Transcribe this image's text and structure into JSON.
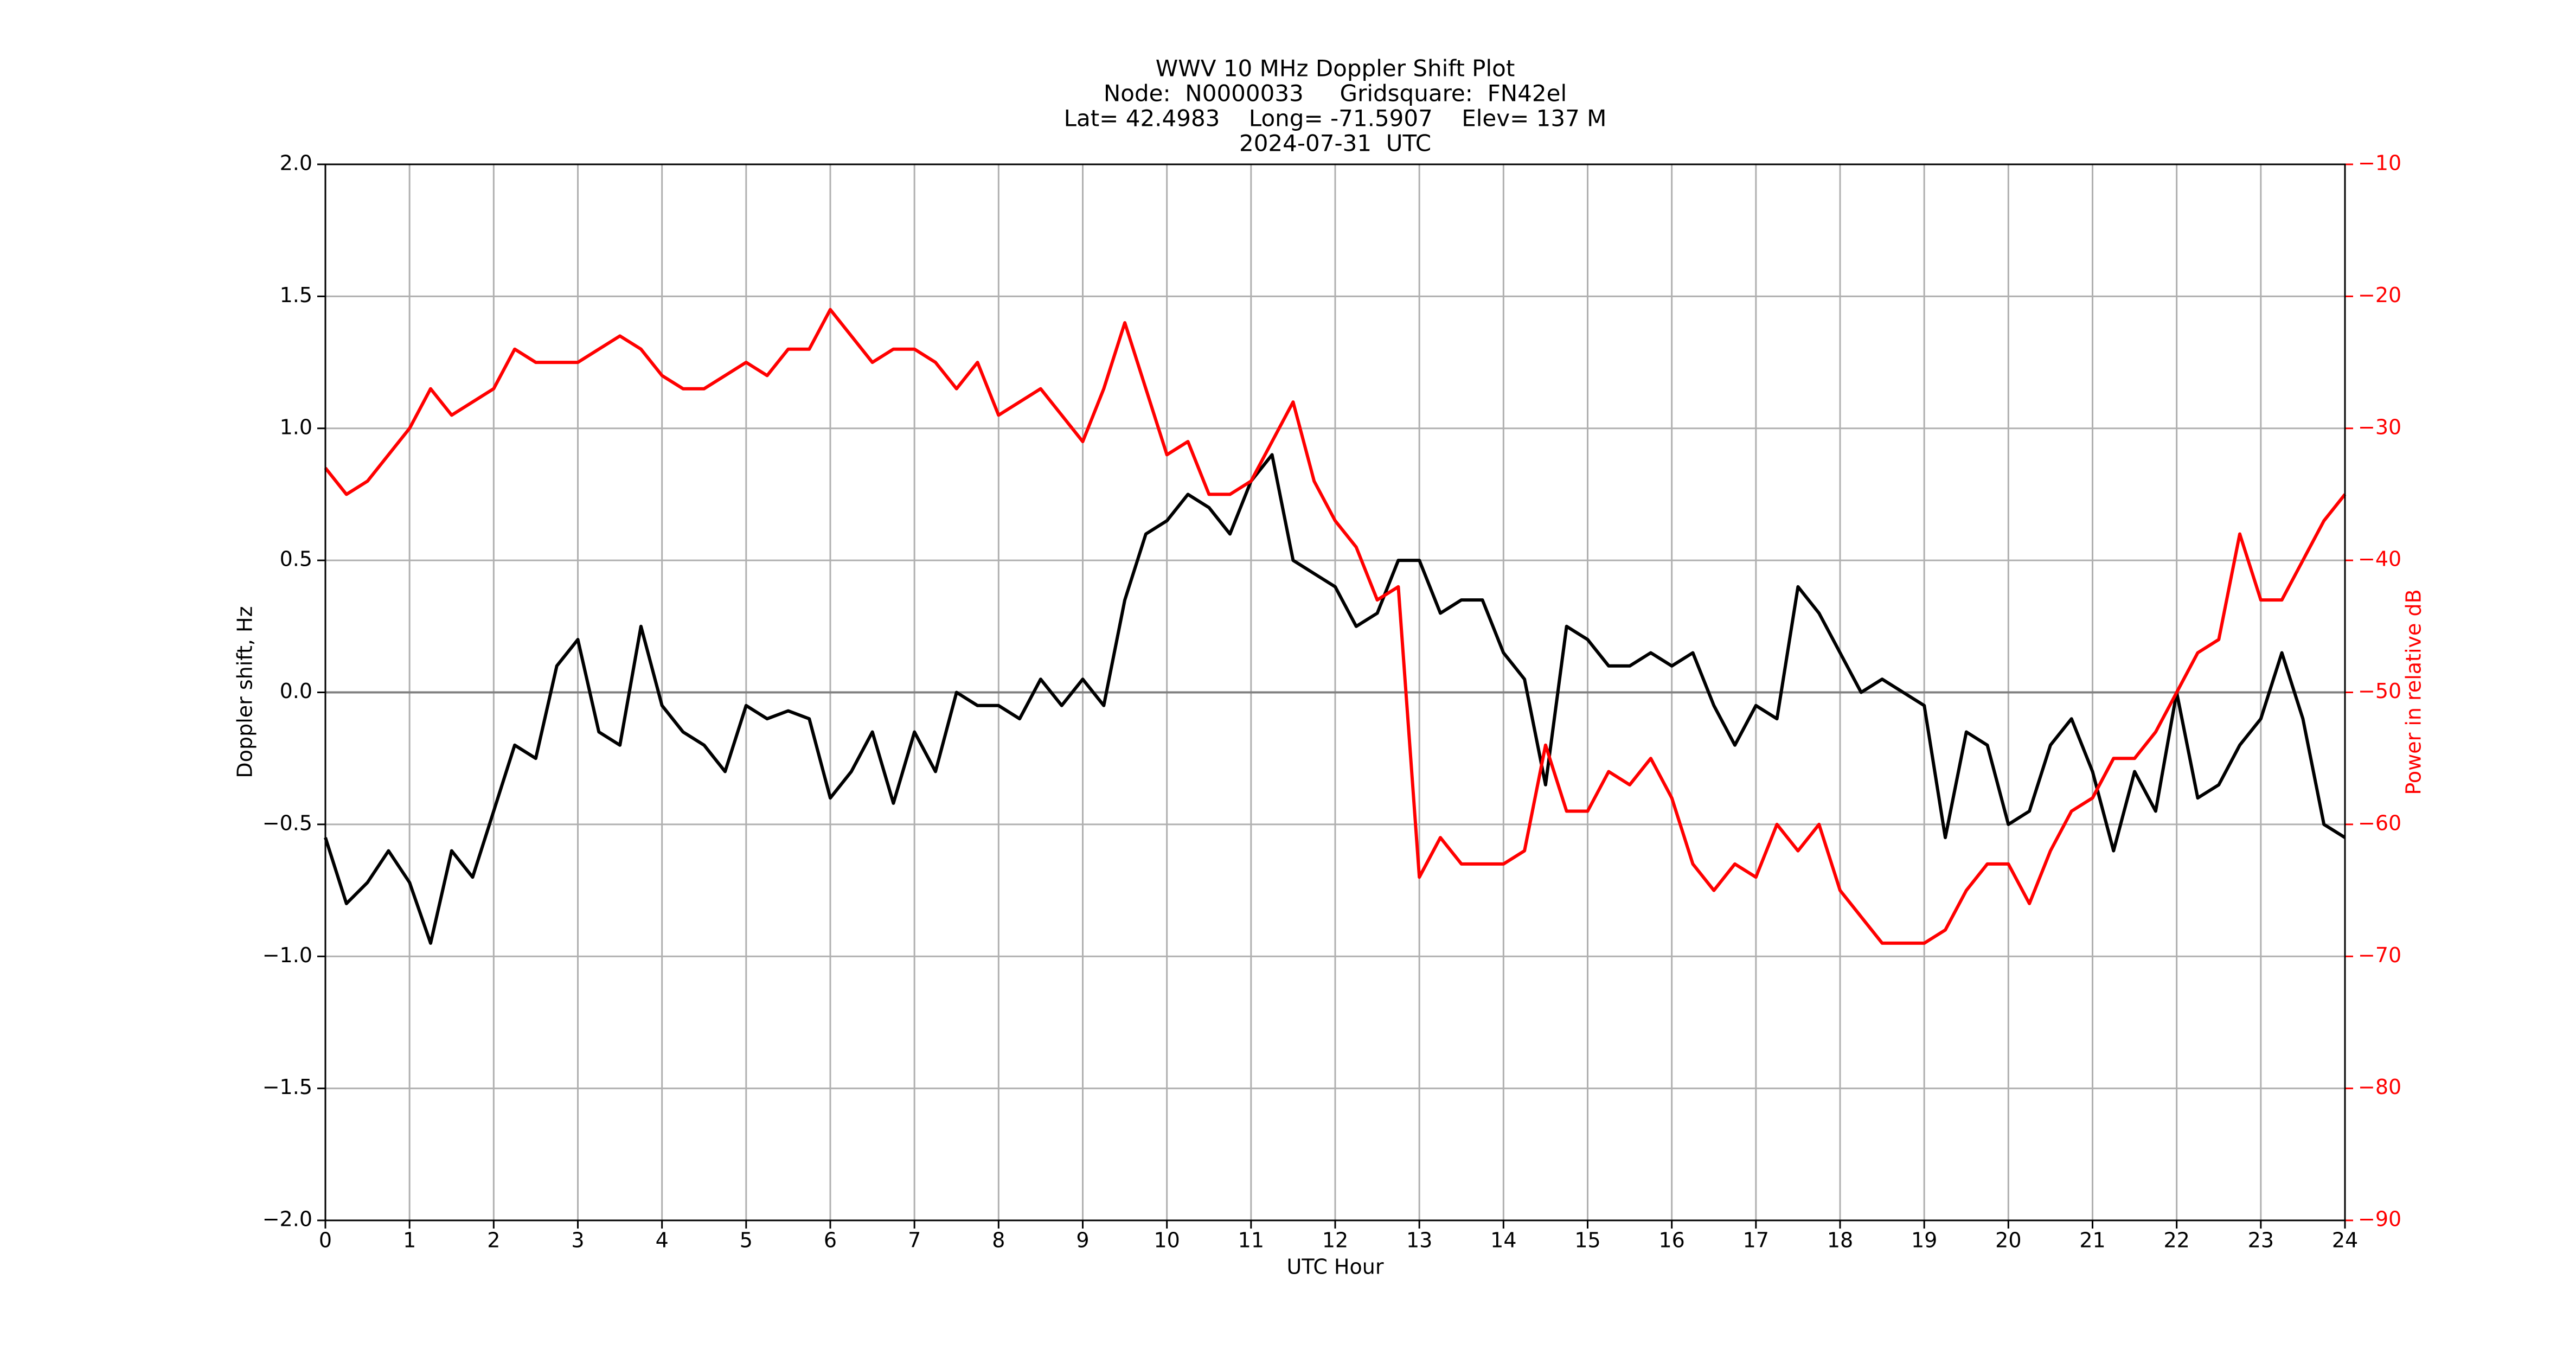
{
  "chart_data": {
    "type": "line",
    "title": [
      "WWV 10 MHz Doppler Shift Plot",
      "Node:  N0000033     Gridsquare:  FN42el",
      "Lat= 42.4983    Long= -71.5907    Elev= 137 M",
      "2024-07-31  UTC"
    ],
    "xlabel": "UTC Hour",
    "ylabel": "Doppler shift, Hz",
    "y2label": "Power in relative dB",
    "y2color": "#ff0000",
    "grid": true,
    "axhline": 0,
    "xlim": [
      0,
      24
    ],
    "xticks": [
      0,
      1,
      2,
      3,
      4,
      5,
      6,
      7,
      8,
      9,
      10,
      11,
      12,
      13,
      14,
      15,
      16,
      17,
      18,
      19,
      20,
      21,
      22,
      23,
      24
    ],
    "ylim": [
      -2,
      2
    ],
    "yticks": [
      {
        "value": -2,
        "label": "−2.0"
      },
      {
        "value": -1.5,
        "label": "−1.5"
      },
      {
        "value": -1,
        "label": "−1.0"
      },
      {
        "value": -0.5,
        "label": "−0.5"
      },
      {
        "value": 0,
        "label": "0.0"
      },
      {
        "value": 0.5,
        "label": "0.5"
      },
      {
        "value": 1,
        "label": "1.0"
      },
      {
        "value": 1.5,
        "label": "1.5"
      },
      {
        "value": 2,
        "label": "2.0"
      }
    ],
    "y2lim": [
      -90,
      -10
    ],
    "y2ticks": [
      {
        "value": -90,
        "label": "−90"
      },
      {
        "value": -80,
        "label": "−80"
      },
      {
        "value": -70,
        "label": "−70"
      },
      {
        "value": -60,
        "label": "−60"
      },
      {
        "value": -50,
        "label": "−50"
      },
      {
        "value": -40,
        "label": "−40"
      },
      {
        "value": -30,
        "label": "−30"
      },
      {
        "value": -20,
        "label": "−20"
      },
      {
        "value": -10,
        "label": "−10"
      }
    ],
    "x": [
      0,
      0.25,
      0.5,
      0.75,
      1,
      1.25,
      1.5,
      1.75,
      2,
      2.25,
      2.5,
      2.75,
      3,
      3.25,
      3.5,
      3.75,
      4,
      4.25,
      4.5,
      4.75,
      5,
      5.25,
      5.5,
      5.75,
      6,
      6.25,
      6.5,
      6.75,
      7,
      7.25,
      7.5,
      7.75,
      8,
      8.25,
      8.5,
      8.75,
      9,
      9.25,
      9.5,
      9.75,
      10,
      10.25,
      10.5,
      10.75,
      11,
      11.25,
      11.5,
      11.75,
      12,
      12.25,
      12.5,
      12.75,
      13,
      13.25,
      13.5,
      13.75,
      14,
      14.25,
      14.5,
      14.75,
      15,
      15.25,
      15.5,
      15.75,
      16,
      16.25,
      16.5,
      16.75,
      17,
      17.25,
      17.5,
      17.75,
      18,
      18.25,
      18.5,
      18.75,
      19,
      19.25,
      19.5,
      19.75,
      20,
      20.25,
      20.5,
      20.75,
      21,
      21.25,
      21.5,
      21.75,
      22,
      22.25,
      22.5,
      22.75,
      23,
      23.25,
      23.5,
      23.75,
      24
    ],
    "series": [
      {
        "color": "#000000",
        "values": [
          -0.55,
          -0.8,
          -0.72,
          -0.6,
          -0.72,
          -0.95,
          -0.6,
          -0.7,
          -0.45,
          -0.2,
          -0.25,
          0.1,
          0.2,
          -0.15,
          -0.2,
          0.25,
          -0.05,
          -0.15,
          -0.2,
          -0.3,
          -0.05,
          -0.1,
          -0.07,
          -0.1,
          -0.4,
          -0.3,
          -0.15,
          -0.42,
          -0.15,
          -0.3,
          0,
          -0.05,
          -0.05,
          -0.1,
          0.05,
          -0.05,
          0.05,
          -0.05,
          0.35,
          0.6,
          0.65,
          0.75,
          0.7,
          0.6,
          0.8,
          0.9,
          0.5,
          0.45,
          0.4,
          0.25,
          0.3,
          0.5,
          0.5,
          0.3,
          0.35,
          0.35,
          0.15,
          0.05,
          -0.35,
          0.25,
          0.2,
          0.1,
          0.1,
          0.15,
          0.1,
          0.15,
          -0.05,
          -0.2,
          -0.05,
          -0.1,
          0.4,
          0.3,
          0.15,
          0,
          0.05,
          0,
          -0.05,
          -0.55,
          -0.15,
          -0.2,
          -0.5,
          -0.45,
          -0.2,
          -0.1,
          -0.3,
          -0.6,
          -0.3,
          -0.45,
          0,
          -0.4,
          -0.35,
          -0.2,
          -0.1,
          0.15,
          -0.1,
          -0.5,
          -0.55
        ]
      },
      {
        "color": "#ff0000",
        "axis": "y2",
        "values": [
          -33,
          -35,
          -34,
          -32,
          -30,
          -27,
          -29,
          -28,
          -27,
          -24,
          -25,
          -25,
          -25,
          -24,
          -23,
          -24,
          -26,
          -27,
          -27,
          -26,
          -25,
          -26,
          -24,
          -24,
          -21,
          -23,
          -25,
          -24,
          -24,
          -25,
          -27,
          -25,
          -29,
          -28,
          -27,
          -29,
          -31,
          -27,
          -22,
          -27,
          -32,
          -31,
          -35,
          -35,
          -34,
          -31,
          -28,
          -34,
          -37,
          -39,
          -43,
          -42,
          -64,
          -61,
          -63,
          -63,
          -63,
          -62,
          -54,
          -59,
          -59,
          -56,
          -57,
          -55,
          -58,
          -63,
          -65,
          -63,
          -64,
          -60,
          -62,
          -60,
          -65,
          -67,
          -69,
          -69,
          -69,
          -68,
          -65,
          -63,
          -63,
          -66,
          -62,
          -59,
          -58,
          -55,
          -55,
          -53,
          -50,
          -47,
          -46,
          -38,
          -43,
          -43,
          -40,
          -37,
          -35
        ]
      }
    ]
  }
}
